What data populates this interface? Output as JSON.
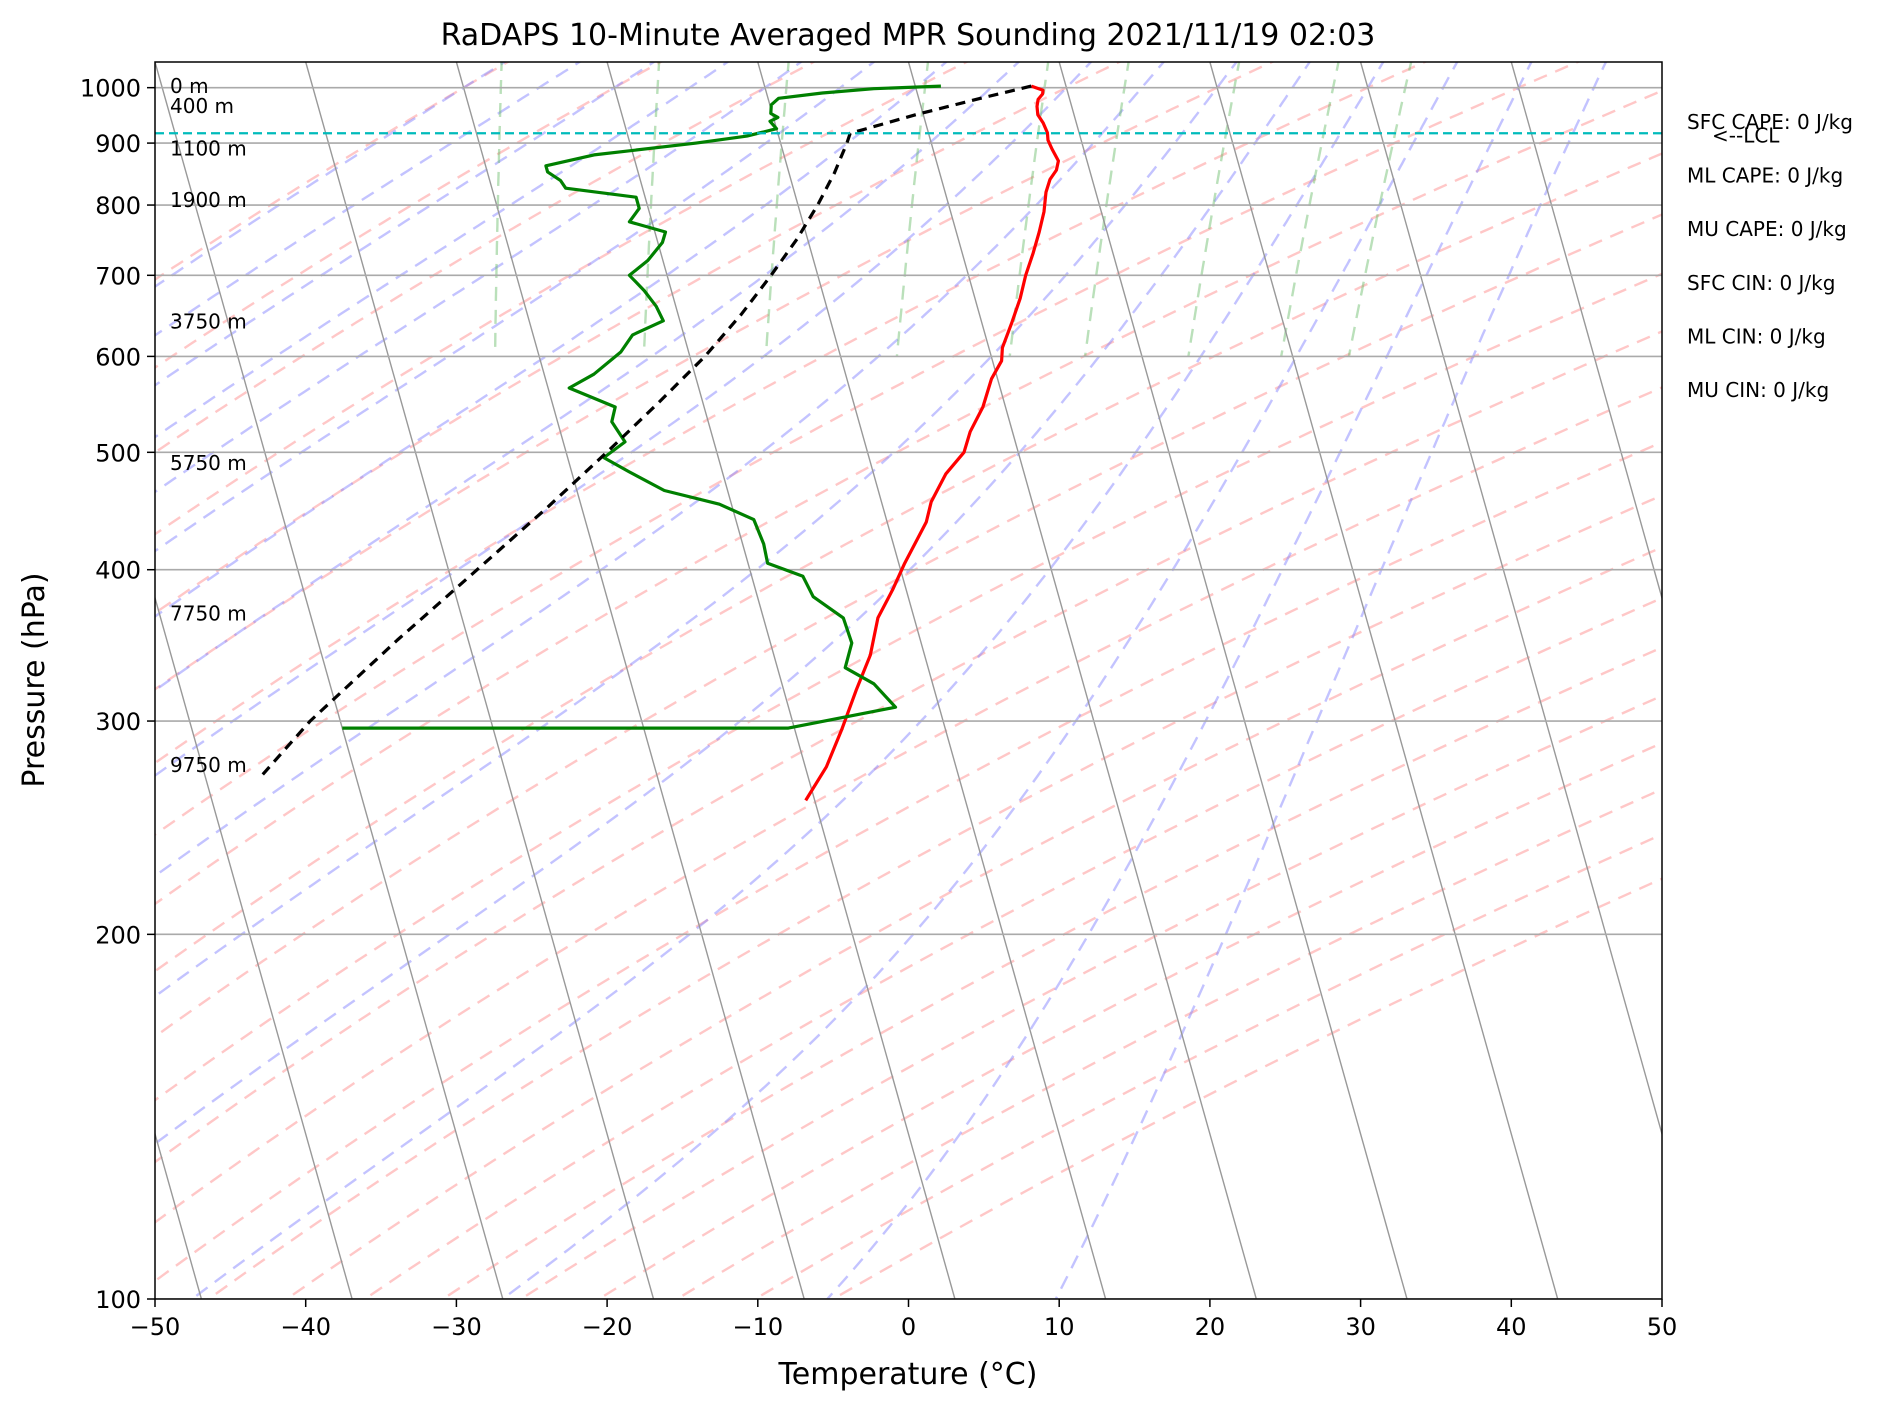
{
  "chart_data": {
    "type": "line",
    "subtype": "skew-T log-P sounding",
    "title": "RaDAPS 10-Minute Averaged MPR Sounding 2021/11/19 02:03",
    "xlabel": "Temperature (°C)",
    "ylabel": "Pressure (hPa)",
    "xlim": [
      -50,
      50
    ],
    "ylim": [
      1050,
      100
    ],
    "y_scale": "log",
    "x_ticks": [
      "−50",
      "−40",
      "−30",
      "−20",
      "−10",
      "0",
      "10",
      "20",
      "30",
      "40",
      "50"
    ],
    "x_tick_values": [
      -50,
      -40,
      -30,
      -20,
      -10,
      0,
      10,
      20,
      30,
      40,
      50
    ],
    "y_ticks": [
      "100",
      "200",
      "300",
      "400",
      "500",
      "600",
      "700",
      "800",
      "900",
      "1000"
    ],
    "y_tick_values": [
      100,
      200,
      300,
      400,
      500,
      600,
      700,
      800,
      900,
      1000
    ],
    "grid": true,
    "skew_deg_per_decade": 22.6,
    "height_labels": [
      {
        "text": "9750 m",
        "p": 276
      },
      {
        "text": "7750 m",
        "p": 368
      },
      {
        "text": "5750 m",
        "p": 490
      },
      {
        "text": "3750 m",
        "p": 641
      },
      {
        "text": "1900 m",
        "p": 808
      },
      {
        "text": "1100 m",
        "p": 891
      },
      {
        "text": "400 m",
        "p": 966
      },
      {
        "text": "0 m",
        "p": 1003
      }
    ],
    "lcl": {
      "p": 917,
      "label": "<--LCL"
    },
    "indices": [
      "SFC CAPE: 0 J/kg",
      "ML CAPE: 0 J/kg",
      "MU CAPE: 0 J/kg",
      "SFC CIN: 0 J/kg",
      "ML CIN: 0 J/kg",
      "MU CIN: 0 J/kg"
    ],
    "series": [
      {
        "style": "temperature",
        "color": "#ff0000",
        "points": [
          [
            1003,
            7.7
          ],
          [
            995,
            8.4
          ],
          [
            988,
            8.3
          ],
          [
            978,
            7.9
          ],
          [
            965,
            7.7
          ],
          [
            950,
            7.6
          ],
          [
            935,
            7.8
          ],
          [
            918,
            7.9
          ],
          [
            905,
            7.8
          ],
          [
            890,
            7.9
          ],
          [
            870,
            8.1
          ],
          [
            855,
            7.8
          ],
          [
            840,
            7.2
          ],
          [
            820,
            6.7
          ],
          [
            808,
            6.5
          ],
          [
            790,
            6.2
          ],
          [
            760,
            5.5
          ],
          [
            730,
            4.7
          ],
          [
            700,
            3.8
          ],
          [
            670,
            3.0
          ],
          [
            640,
            2.0
          ],
          [
            610,
            0.9
          ],
          [
            595,
            0.6
          ],
          [
            575,
            -0.4
          ],
          [
            545,
            -1.5
          ],
          [
            520,
            -2.8
          ],
          [
            500,
            -3.6
          ],
          [
            480,
            -5.2
          ],
          [
            455,
            -6.7
          ],
          [
            438,
            -7.4
          ],
          [
            405,
            -9.6
          ],
          [
            385,
            -10.9
          ],
          [
            365,
            -12.4
          ],
          [
            340,
            -13.6
          ],
          [
            318,
            -15.2
          ],
          [
            295,
            -16.9
          ],
          [
            275,
            -18.6
          ],
          [
            258,
            -20.6
          ]
        ]
      },
      {
        "style": "dewpoint",
        "color": "#008000",
        "points": [
          [
            1003,
            1.7
          ],
          [
            998,
            -2.8
          ],
          [
            990,
            -6.3
          ],
          [
            980,
            -9.3
          ],
          [
            968,
            -9.9
          ],
          [
            952,
            -10.1
          ],
          [
            945,
            -9.7
          ],
          [
            938,
            -10.3
          ],
          [
            925,
            -10.0
          ],
          [
            912,
            -12.1
          ],
          [
            900,
            -15.6
          ],
          [
            880,
            -22.6
          ],
          [
            862,
            -26.0
          ],
          [
            852,
            -26.0
          ],
          [
            838,
            -25.3
          ],
          [
            826,
            -25.1
          ],
          [
            812,
            -20.6
          ],
          [
            795,
            -20.6
          ],
          [
            775,
            -21.5
          ],
          [
            760,
            -19.3
          ],
          [
            745,
            -19.7
          ],
          [
            720,
            -21.0
          ],
          [
            700,
            -22.5
          ],
          [
            680,
            -21.8
          ],
          [
            660,
            -21.3
          ],
          [
            642,
            -21.1
          ],
          [
            625,
            -23.4
          ],
          [
            605,
            -24.5
          ],
          [
            580,
            -26.7
          ],
          [
            565,
            -28.6
          ],
          [
            545,
            -25.9
          ],
          [
            530,
            -26.4
          ],
          [
            510,
            -25.9
          ],
          [
            495,
            -27.6
          ],
          [
            482,
            -26.2
          ],
          [
            465,
            -24.2
          ],
          [
            453,
            -20.8
          ],
          [
            440,
            -18.8
          ],
          [
            420,
            -18.6
          ],
          [
            405,
            -18.7
          ],
          [
            395,
            -16.6
          ],
          [
            380,
            -16.3
          ],
          [
            365,
            -14.7
          ],
          [
            348,
            -14.6
          ],
          [
            332,
            -15.5
          ],
          [
            322,
            -13.9
          ],
          [
            308,
            -12.9
          ],
          [
            296,
            -20.4
          ],
          [
            296,
            -37.0
          ],
          [
            296,
            -50.0
          ]
        ]
      },
      {
        "style": "parcel",
        "color": "#000000",
        "dashed": true,
        "points": [
          [
            1003,
            7.7
          ],
          [
            980,
            4.1
          ],
          [
            950,
            -0.5
          ],
          [
            917,
            -5.2
          ],
          [
            900,
            -5.6
          ],
          [
            850,
            -7.0
          ],
          [
            800,
            -8.7
          ],
          [
            750,
            -10.7
          ],
          [
            700,
            -13.1
          ],
          [
            650,
            -15.8
          ],
          [
            600,
            -19.0
          ],
          [
            550,
            -22.9
          ],
          [
            500,
            -27.3
          ],
          [
            450,
            -32.3
          ],
          [
            400,
            -38.1
          ],
          [
            350,
            -44.7
          ],
          [
            300,
            -52.0
          ],
          [
            270,
            -56.3
          ]
        ]
      }
    ]
  }
}
